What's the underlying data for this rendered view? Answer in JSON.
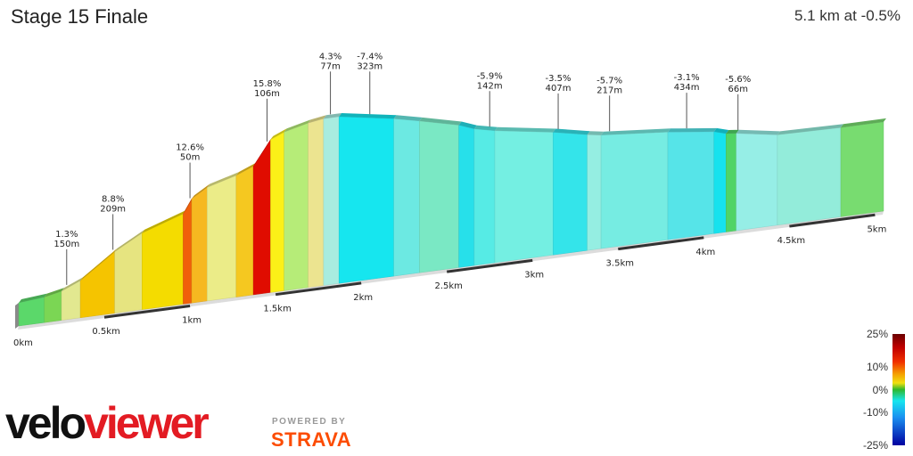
{
  "header": {
    "title": "Stage 15 Finale",
    "summary": "5.1 km at -0.5%"
  },
  "chart_data": {
    "type": "area",
    "title": "Stage 15 Finale",
    "subtitle": "5.1 km at -0.5%",
    "x_unit": "km",
    "distance_ticks": [
      {
        "km": 0,
        "label": "0km"
      },
      {
        "km": 0.5,
        "label": "0.5km"
      },
      {
        "km": 1,
        "label": "1km"
      },
      {
        "km": 1.5,
        "label": "1.5km"
      },
      {
        "km": 2,
        "label": "2km"
      },
      {
        "km": 2.5,
        "label": "2.5km"
      },
      {
        "km": 3,
        "label": "3km"
      },
      {
        "km": 3.5,
        "label": "3.5km"
      },
      {
        "km": 4,
        "label": "4km"
      },
      {
        "km": 4.5,
        "label": "4.5km"
      },
      {
        "km": 5,
        "label": "5km"
      }
    ],
    "profile": [
      {
        "km": 0.0,
        "elev": 10.0
      },
      {
        "km": 0.15,
        "elev": 11.0
      },
      {
        "km": 0.25,
        "elev": 12.5
      },
      {
        "km": 0.36,
        "elev": 16.0
      },
      {
        "km": 0.56,
        "elev": 26.5
      },
      {
        "km": 0.72,
        "elev": 33.0
      },
      {
        "km": 0.96,
        "elev": 39.0
      },
      {
        "km": 1.01,
        "elev": 45.0
      },
      {
        "km": 1.1,
        "elev": 49.0
      },
      {
        "km": 1.27,
        "elev": 52.5
      },
      {
        "km": 1.37,
        "elev": 55.5
      },
      {
        "km": 1.47,
        "elev": 66.0
      },
      {
        "km": 1.55,
        "elev": 68.5
      },
      {
        "km": 1.69,
        "elev": 71.0
      },
      {
        "km": 1.78,
        "elev": 72.0
      },
      {
        "km": 1.87,
        "elev": 72.0
      },
      {
        "km": 2.19,
        "elev": 68.0
      },
      {
        "km": 2.34,
        "elev": 65.5
      },
      {
        "km": 2.57,
        "elev": 61.5
      },
      {
        "km": 2.66,
        "elev": 59.0
      },
      {
        "km": 2.78,
        "elev": 57.0
      },
      {
        "km": 3.12,
        "elev": 53.0
      },
      {
        "km": 3.32,
        "elev": 50.0
      },
      {
        "km": 3.4,
        "elev": 49.0
      },
      {
        "km": 3.79,
        "elev": 46.5
      },
      {
        "km": 4.06,
        "elev": 44.0
      },
      {
        "km": 4.13,
        "elev": 42.5
      },
      {
        "km": 4.19,
        "elev": 42.0
      },
      {
        "km": 4.43,
        "elev": 39.0
      },
      {
        "km": 4.8,
        "elev": 38.5
      },
      {
        "km": 5.05,
        "elev": 38.5
      }
    ],
    "segment_colors": [
      "#5bd86a",
      "#7bd654",
      "#e2e890",
      "#f5c400",
      "#e6e480",
      "#f4dc00",
      "#f0600a",
      "#f6b820",
      "#ebec88",
      "#f5c820",
      "#e00c00",
      "#fbf018",
      "#b6ec78",
      "#ece490",
      "#a8ece0",
      "#16e6ef",
      "#6ce9e2",
      "#7ae8c4",
      "#27e0ea",
      "#56ebe5",
      "#74efe2",
      "#34e4ea",
      "#95eee2",
      "#76ece2",
      "#56e4e8",
      "#16e2ee",
      "#50d466",
      "#96eee6",
      "#93ecda",
      "#78dc70"
    ],
    "annotations": [
      {
        "km": 0.28,
        "grade": "1.3%",
        "length": "150m"
      },
      {
        "km": 0.55,
        "grade": "8.8%",
        "length": "209m"
      },
      {
        "km": 1.0,
        "grade": "12.6%",
        "length": "50m"
      },
      {
        "km": 1.45,
        "grade": "15.8%",
        "length": "106m"
      },
      {
        "km": 1.82,
        "grade": "4.3%",
        "length": "77m"
      },
      {
        "km": 2.05,
        "grade": "-7.4%",
        "length": "323m"
      },
      {
        "km": 2.75,
        "grade": "-5.9%",
        "length": "142m"
      },
      {
        "km": 3.15,
        "grade": "-3.5%",
        "length": "407m"
      },
      {
        "km": 3.45,
        "grade": "-5.7%",
        "length": "217m"
      },
      {
        "km": 3.9,
        "grade": "-3.1%",
        "length": "434m"
      },
      {
        "km": 4.2,
        "grade": "-5.6%",
        "length": "66m"
      }
    ],
    "legend": {
      "type": "gradient-colorbar",
      "ticks": [
        "25%",
        "10%",
        "0%",
        "-10%",
        "-25%"
      ],
      "colors": [
        "#6a0000",
        "#e00c00",
        "#f5a000",
        "#f0e010",
        "#2db82d",
        "#16e6ef",
        "#1060e0",
        "#0000a0"
      ]
    }
  },
  "branding": {
    "velo": "velo",
    "viewer": "viewer",
    "powered_by": "POWERED BY",
    "strava": "STRAVA"
  }
}
